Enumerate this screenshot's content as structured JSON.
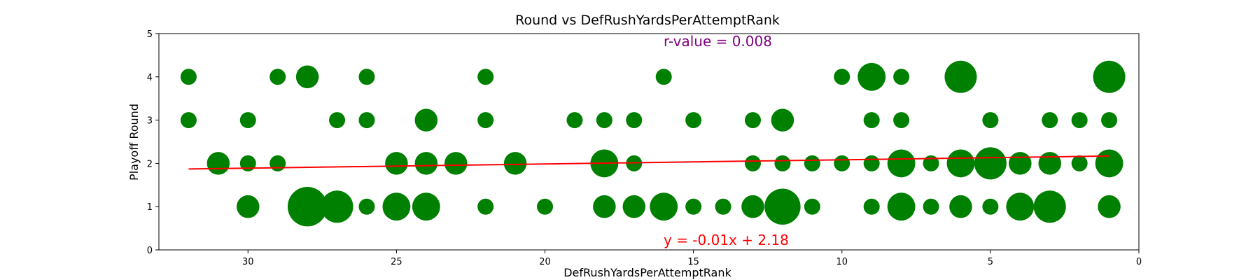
{
  "chart_data": {
    "type": "scatter",
    "title": "Round vs DefRushYardsPerAttemptRank",
    "xlabel": "DefRushYardsPerAttemptRank",
    "ylabel": "Playoff Round",
    "xlim": [
      33,
      0
    ],
    "ylim": [
      0,
      5
    ],
    "xticks": [
      30,
      25,
      20,
      15,
      10,
      5,
      0
    ],
    "yticks": [
      0,
      1,
      2,
      3,
      4,
      5
    ],
    "grid": false,
    "point_color": "#008000",
    "line_color": "#ff0000",
    "regression": {
      "slope": -0.01,
      "intercept": 2.18,
      "label": "y = -0.01x + 2.18",
      "x_range": [
        1,
        32
      ],
      "y_start": 1.87,
      "y_end": 2.17
    },
    "r_value": {
      "label": "r-value = 0.008",
      "color": "#800080"
    },
    "points": [
      {
        "x": 32,
        "y": 4,
        "count": 1
      },
      {
        "x": 28,
        "y": 4,
        "count": 2
      },
      {
        "x": 29,
        "y": 4,
        "count": 1
      },
      {
        "x": 26,
        "y": 4,
        "count": 1
      },
      {
        "x": 22,
        "y": 4,
        "count": 1
      },
      {
        "x": 16,
        "y": 4,
        "count": 1
      },
      {
        "x": 10,
        "y": 4,
        "count": 1
      },
      {
        "x": 9,
        "y": 4,
        "count": 3
      },
      {
        "x": 8,
        "y": 4,
        "count": 1
      },
      {
        "x": 6,
        "y": 4,
        "count": 4
      },
      {
        "x": 1,
        "y": 4,
        "count": 4
      },
      {
        "x": 32,
        "y": 3,
        "count": 1
      },
      {
        "x": 30,
        "y": 3,
        "count": 1
      },
      {
        "x": 27,
        "y": 3,
        "count": 1
      },
      {
        "x": 26,
        "y": 3,
        "count": 1
      },
      {
        "x": 24,
        "y": 3,
        "count": 2
      },
      {
        "x": 22,
        "y": 3,
        "count": 1
      },
      {
        "x": 19,
        "y": 3,
        "count": 1
      },
      {
        "x": 18,
        "y": 3,
        "count": 1
      },
      {
        "x": 17,
        "y": 3,
        "count": 1
      },
      {
        "x": 15,
        "y": 3,
        "count": 1
      },
      {
        "x": 13,
        "y": 3,
        "count": 1
      },
      {
        "x": 12,
        "y": 3,
        "count": 2
      },
      {
        "x": 9,
        "y": 3,
        "count": 1
      },
      {
        "x": 8,
        "y": 3,
        "count": 1
      },
      {
        "x": 5,
        "y": 3,
        "count": 1
      },
      {
        "x": 3,
        "y": 3,
        "count": 1
      },
      {
        "x": 2,
        "y": 3,
        "count": 1
      },
      {
        "x": 1,
        "y": 3,
        "count": 1
      },
      {
        "x": 31,
        "y": 2,
        "count": 2
      },
      {
        "x": 30,
        "y": 2,
        "count": 1
      },
      {
        "x": 29,
        "y": 2,
        "count": 1
      },
      {
        "x": 25,
        "y": 2,
        "count": 2
      },
      {
        "x": 24,
        "y": 2,
        "count": 2
      },
      {
        "x": 23,
        "y": 2,
        "count": 2
      },
      {
        "x": 21,
        "y": 2,
        "count": 2
      },
      {
        "x": 18,
        "y": 2,
        "count": 3
      },
      {
        "x": 17,
        "y": 2,
        "count": 1
      },
      {
        "x": 13,
        "y": 2,
        "count": 1
      },
      {
        "x": 12,
        "y": 2,
        "count": 1
      },
      {
        "x": 11,
        "y": 2,
        "count": 1
      },
      {
        "x": 10,
        "y": 2,
        "count": 1
      },
      {
        "x": 9,
        "y": 2,
        "count": 1
      },
      {
        "x": 8,
        "y": 2,
        "count": 3
      },
      {
        "x": 7,
        "y": 2,
        "count": 1
      },
      {
        "x": 6,
        "y": 2,
        "count": 3
      },
      {
        "x": 5,
        "y": 2,
        "count": 4
      },
      {
        "x": 4,
        "y": 2,
        "count": 2
      },
      {
        "x": 3,
        "y": 2,
        "count": 2
      },
      {
        "x": 2,
        "y": 2,
        "count": 1
      },
      {
        "x": 1,
        "y": 2,
        "count": 3
      },
      {
        "x": 30,
        "y": 1,
        "count": 2
      },
      {
        "x": 28,
        "y": 1,
        "count": 6
      },
      {
        "x": 27,
        "y": 1,
        "count": 4
      },
      {
        "x": 26,
        "y": 1,
        "count": 1
      },
      {
        "x": 25,
        "y": 1,
        "count": 3
      },
      {
        "x": 24,
        "y": 1,
        "count": 3
      },
      {
        "x": 22,
        "y": 1,
        "count": 1
      },
      {
        "x": 20,
        "y": 1,
        "count": 1
      },
      {
        "x": 18,
        "y": 1,
        "count": 2
      },
      {
        "x": 17,
        "y": 1,
        "count": 2
      },
      {
        "x": 16,
        "y": 1,
        "count": 3
      },
      {
        "x": 15,
        "y": 1,
        "count": 1
      },
      {
        "x": 14,
        "y": 1,
        "count": 1
      },
      {
        "x": 13,
        "y": 1,
        "count": 2
      },
      {
        "x": 12,
        "y": 1,
        "count": 5
      },
      {
        "x": 11,
        "y": 1,
        "count": 1
      },
      {
        "x": 9,
        "y": 1,
        "count": 1
      },
      {
        "x": 8,
        "y": 1,
        "count": 3
      },
      {
        "x": 7,
        "y": 1,
        "count": 1
      },
      {
        "x": 6,
        "y": 1,
        "count": 2
      },
      {
        "x": 5,
        "y": 1,
        "count": 1
      },
      {
        "x": 4,
        "y": 1,
        "count": 3
      },
      {
        "x": 3,
        "y": 1,
        "count": 4
      },
      {
        "x": 1,
        "y": 1,
        "count": 2
      }
    ]
  }
}
